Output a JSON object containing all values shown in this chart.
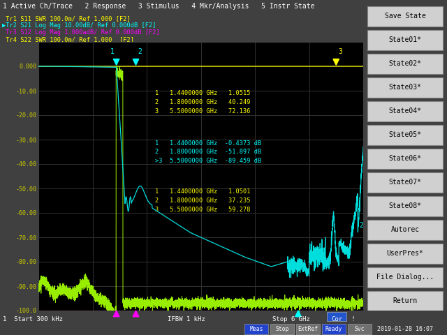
{
  "title_bar": "1 Active Ch/Trace   2 Response   3 Stimulus   4 Mkr/Analysis   5 Instr State",
  "trace_labels": [
    " Tr1 S11 SWR 100.0m/ Ref 1.000 [F2]",
    "▶Tr2 S21 Log Mag 10.00dB/ Ref 0.000dB [F2]",
    " Tr3 S12 Log Mag 1.000adB/ Ref 0.000dB [F2]",
    " Tr4 S22 SWR 100.0m/ Ref 1.000  [F2]"
  ],
  "trace_colors": [
    "#ffff00",
    "#00ffff",
    "#ff00ff",
    "#ffff00"
  ],
  "bg_color": "#000000",
  "grid_color": "#333333",
  "ylim": [
    -100,
    10
  ],
  "ytick_vals": [
    0,
    -10,
    -20,
    -30,
    -40,
    -50,
    -60,
    -70,
    -80,
    -90,
    -100
  ],
  "ytick_labels": [
    "0.000",
    "-10.00",
    "-20.00",
    "-30.00",
    "-40.00",
    "-50.00",
    "-60.00",
    "-70.00",
    "-80.00",
    "-90.00",
    "-100.0"
  ],
  "xlim_ghz": [
    0,
    6
  ],
  "start_freq": "1  Start 300 kHz",
  "stop_freq": "Stop 6 GHz",
  "ifbw": "IFBW 1 kHz",
  "cor_label": "Cor",
  "date": "2019-01-28 16:07",
  "marker_text_s11_swr": [
    "1   1.4400000 GHz   1.0515",
    "2   1.8000000 GHz   40.249",
    "3   5.5000000 GHz   72.136"
  ],
  "marker_text_s21": [
    "1   1.4400000 GHz  -0.4373 dB",
    "2   1.8000000 GHz  -51.897 dB",
    ">3  5.5000000 GHz  -89.459 dB"
  ],
  "marker_text_s22_swr": [
    "1   1.4400000 GHz   1.0501",
    "2   1.8000000 GHz   37.235",
    "3   5.5000000 GHz   59.278"
  ],
  "right_buttons": [
    "Save State",
    "State01*",
    "State02*",
    "State03*",
    "State04*",
    "State05*",
    "State06*",
    "State07*",
    "State08*",
    "Autorec",
    "UserPres*",
    "File Dialog...",
    "Return"
  ],
  "status_buttons": [
    "Meas",
    "Stop",
    "ExtRef",
    "Ready",
    "Svc"
  ],
  "status_active": [
    true,
    false,
    false,
    true,
    false
  ]
}
